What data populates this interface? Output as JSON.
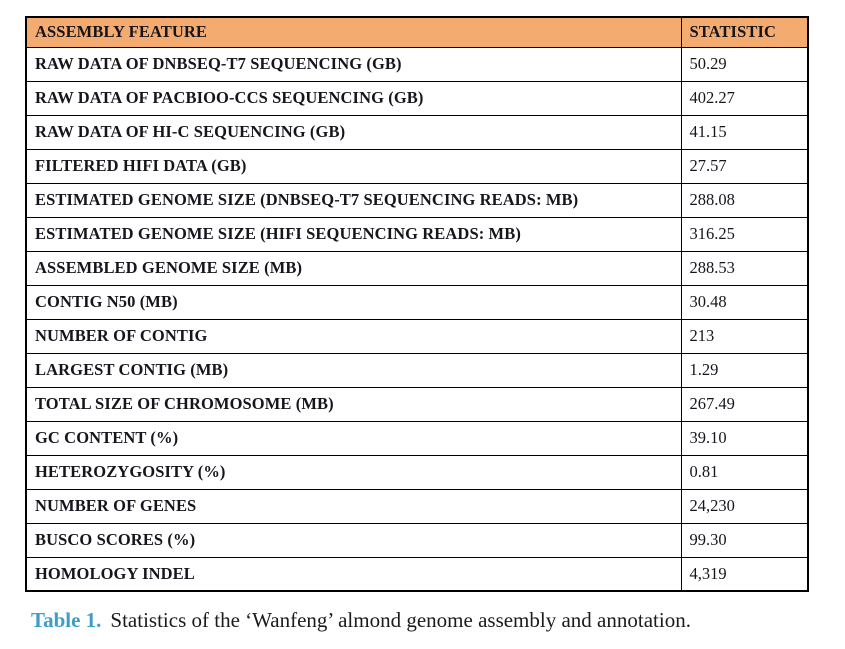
{
  "table": {
    "columns": [
      "ASSEMBLY FEATURE",
      "STATISTIC"
    ],
    "rows": [
      {
        "feature": "RAW DATA OF DNBSEQ-T7 SEQUENCING (GB)",
        "statistic": "50.29"
      },
      {
        "feature": "RAW DATA OF PACBIOO-CCS SEQUENCING (GB)",
        "statistic": "402.27"
      },
      {
        "feature": "RAW DATA OF HI-C SEQUENCING (GB)",
        "statistic": "41.15"
      },
      {
        "feature": "FILTERED HIFI DATA (GB)",
        "statistic": "27.57"
      },
      {
        "feature": "ESTIMATED GENOME SIZE (DNBSEQ-T7 SEQUENCING READS: MB)",
        "statistic": "288.08"
      },
      {
        "feature": "ESTIMATED GENOME SIZE (HIFI SEQUENCING READS: MB)",
        "statistic": "316.25"
      },
      {
        "feature": "ASSEMBLED GENOME SIZE (MB)",
        "statistic": "288.53"
      },
      {
        "feature": "CONTIG N50 (MB)",
        "statistic": "30.48"
      },
      {
        "feature": "NUMBER OF CONTIG",
        "statistic": "213"
      },
      {
        "feature": "LARGEST CONTIG (MB)",
        "statistic": "1.29"
      },
      {
        "feature": "TOTAL SIZE OF CHROMOSOME (MB)",
        "statistic": "267.49"
      },
      {
        "feature": "GC CONTENT (%)",
        "statistic": "39.10"
      },
      {
        "feature": "HETEROZYGOSITY (%)",
        "statistic": "0.81"
      },
      {
        "feature": "NUMBER OF GENES",
        "statistic": "24,230"
      },
      {
        "feature": "BUSCO SCORES (%)",
        "statistic": "99.30"
      },
      {
        "feature": "HOMOLOGY INDEL",
        "statistic": "4,319"
      }
    ]
  },
  "caption": {
    "label": "Table 1.",
    "text": "Statistics of the ‘Wanfeng’ almond genome assembly and annotation."
  },
  "colors": {
    "header_bg": "#F4AB70",
    "border": "#000000",
    "text": "#15151d",
    "caption_label": "#3D9DCA"
  }
}
